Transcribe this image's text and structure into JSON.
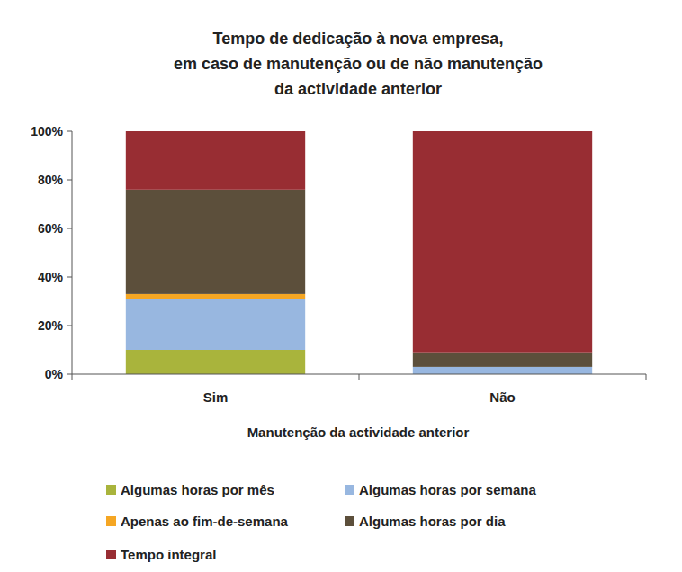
{
  "chart_data": {
    "type": "bar",
    "stacked": true,
    "title": "Tempo de dedicação à nova empresa,\nem caso de manutenção ou de não manutenção\nda actividade anterior",
    "x_label": "Manutenção da actividade anterior",
    "categories": [
      "Sim",
      "Não"
    ],
    "series": [
      {
        "name": "Algumas horas por mês",
        "color": "#a9b43c",
        "values": [
          10,
          0
        ]
      },
      {
        "name": "Algumas horas por semana",
        "color": "#98b7e0",
        "values": [
          21,
          3
        ]
      },
      {
        "name": "Apenas ao fim-de-semana",
        "color": "#f5a623",
        "values": [
          2,
          0
        ]
      },
      {
        "name": "Algumas horas por dia",
        "color": "#5c4f3b",
        "values": [
          43,
          6
        ]
      },
      {
        "name": "Tempo integral",
        "color": "#982d33",
        "values": [
          24,
          91
        ]
      }
    ],
    "ylim": [
      0,
      100
    ],
    "yticks": [
      {
        "value": 0,
        "label": "0%"
      },
      {
        "value": 20,
        "label": "20%"
      },
      {
        "value": 40,
        "label": "40%"
      },
      {
        "value": 60,
        "label": "60%"
      },
      {
        "value": 80,
        "label": "80%"
      },
      {
        "value": 100,
        "label": "100%"
      }
    ],
    "grid": false,
    "legend": "bottom"
  }
}
